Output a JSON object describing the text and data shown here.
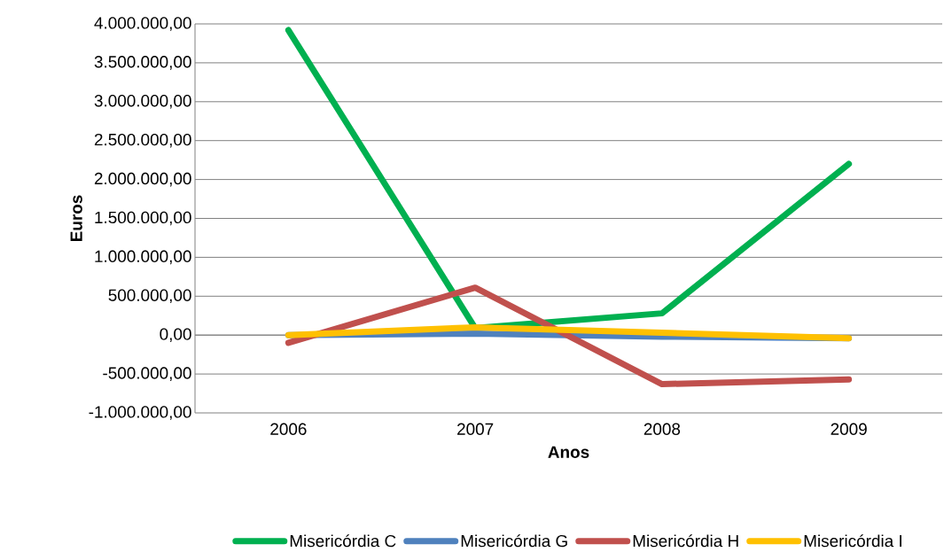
{
  "chart_data": {
    "type": "line",
    "xlabel": "Anos",
    "ylabel": "Euros",
    "categories": [
      "2006",
      "2007",
      "2008",
      "2009"
    ],
    "series": [
      {
        "name": "Misericórdia C",
        "color": "#00b050",
        "values": [
          3920000,
          90000,
          280000,
          2200000
        ]
      },
      {
        "name": "Misericórdia G",
        "color": "#4f81bd",
        "values": [
          0,
          20000,
          -20000,
          -40000
        ]
      },
      {
        "name": "Misericórdia H",
        "color": "#c0504d",
        "values": [
          -100000,
          610000,
          -630000,
          -570000
        ]
      },
      {
        "name": "Misericórdia I",
        "color": "#ffc000",
        "values": [
          0,
          100000,
          30000,
          -40000
        ]
      }
    ],
    "ylim": [
      -1000000,
      4000000
    ],
    "yticks": [
      {
        "value": -1000000,
        "label": "-1.000.000,00"
      },
      {
        "value": -500000,
        "label": "-500.000,00"
      },
      {
        "value": 0,
        "label": "0,00"
      },
      {
        "value": 500000,
        "label": "500.000,00"
      },
      {
        "value": 1000000,
        "label": "1.000.000,00"
      },
      {
        "value": 1500000,
        "label": "1.500.000,00"
      },
      {
        "value": 2000000,
        "label": "2.000.000,00"
      },
      {
        "value": 2500000,
        "label": "2.500.000,00"
      },
      {
        "value": 3000000,
        "label": "3.000.000,00"
      },
      {
        "value": 3500000,
        "label": "3.500.000,00"
      },
      {
        "value": 4000000,
        "label": "4.000.000,00"
      }
    ],
    "grid": "y",
    "legend": "bottom"
  }
}
